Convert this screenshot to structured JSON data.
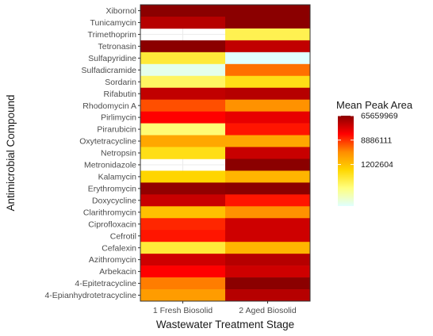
{
  "chart_data": {
    "type": "heatmap",
    "xlabel": "Wastewater Treatment Stage",
    "ylabel": "Antimicrobial Compound",
    "x_categories": [
      "1 Fresh Biosolid",
      "2 Aged Biosolid"
    ],
    "y_categories": [
      "Xibornol",
      "Tunicamycin",
      "Trimethoprim",
      "Tetronasin",
      "Sulfapyridine",
      "Sulfadicramide",
      "Sordarin",
      "Rifabutin",
      "Rhodomycin A",
      "Pirlimycin",
      "Pirarubicin",
      "Oxytetracycline",
      "Netropsin",
      "Metronidazole",
      "Kalamycin",
      "Erythromycin",
      "Doxycycline",
      "Clarithromycin",
      "Ciprofloxacin",
      "Cefrotil",
      "Cefalexin",
      "Azithromycin",
      "Arbekacin",
      "4-Epitetracycline",
      "4-Epianhydrotetracycline"
    ],
    "series": [
      {
        "name": "1 Fresh Biosolid",
        "values": [
          65659969,
          38000000,
          null,
          65659969,
          400000,
          50000,
          250000,
          33000000,
          6500000,
          15000000,
          200000,
          2000000,
          600000,
          null,
          800000,
          60000000,
          30000000,
          1200000,
          10000000,
          12000000,
          400000,
          28000000,
          15000000,
          4000000,
          2500000
        ]
      },
      {
        "name": "2 Aged Biosolid",
        "values": [
          65659969,
          65659969,
          300000,
          33000000,
          40000,
          4500000,
          600000,
          38000000,
          3000000,
          20000000,
          12000000,
          2000000,
          30000000,
          65659969,
          1500000,
          65659969,
          12000000,
          3000000,
          28000000,
          28000000,
          1500000,
          38000000,
          28000000,
          65659969,
          38000000
        ]
      }
    ],
    "legend": {
      "title": "Mean Peak Area",
      "breaks": [
        65659969,
        8886111,
        1202604
      ],
      "labels": [
        "65659969",
        "8886111",
        "1202604"
      ],
      "scale": "log",
      "range": [
        40000,
        65659969
      ],
      "colors": [
        "#e0ffff",
        "#ffff7f",
        "#ffd700",
        "#ff8c00",
        "#ff0000",
        "#8b0000"
      ]
    },
    "grid": true,
    "legend_position": "right"
  }
}
